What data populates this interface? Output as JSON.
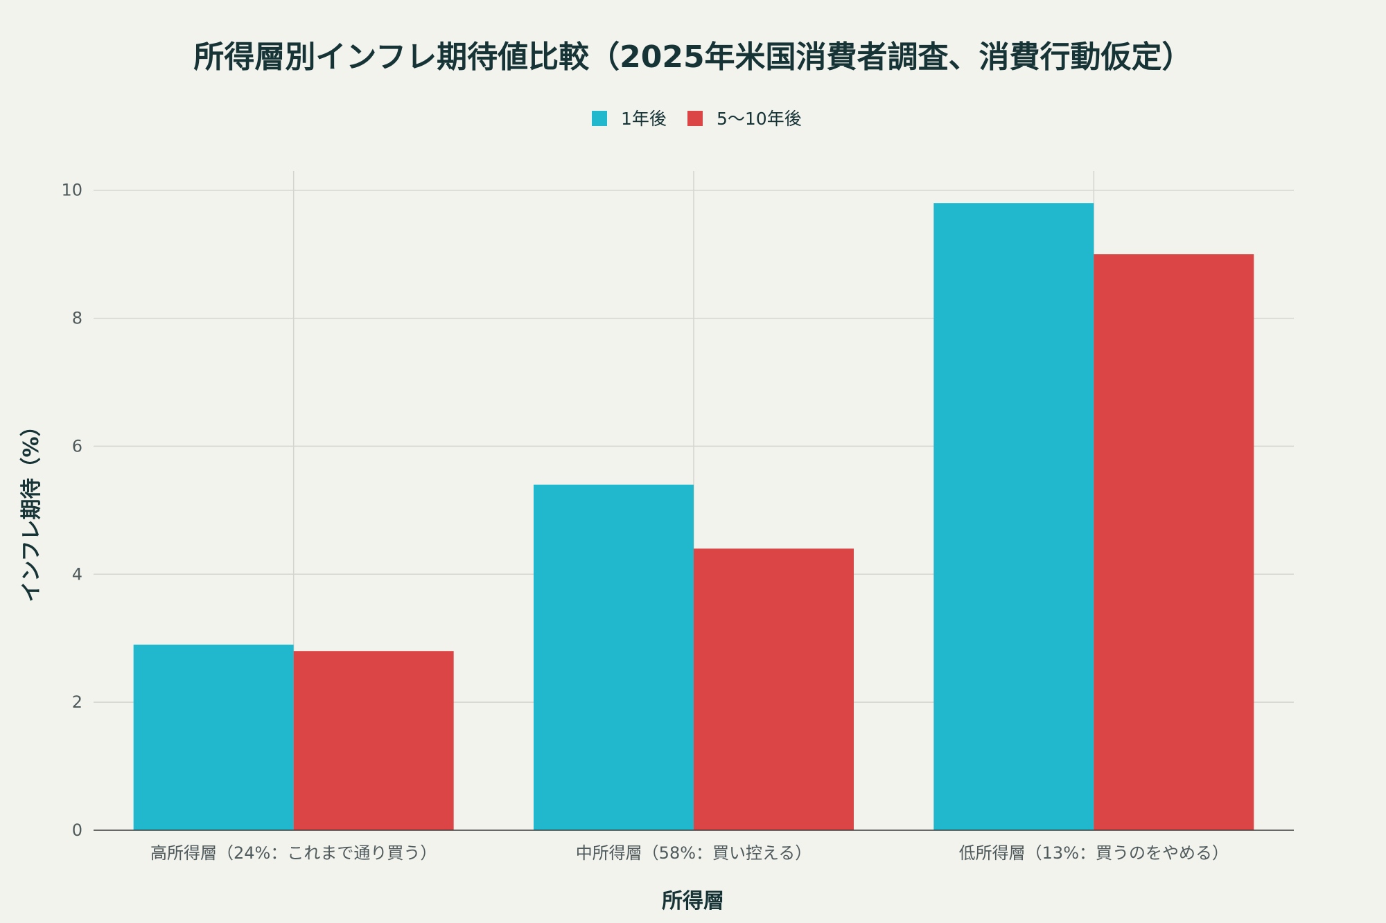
{
  "chart_data": {
    "type": "bar",
    "title": "所得層別インフレ期待値比較（2025年米国消費者調査、消費行動仮定）",
    "xlabel": "所得層",
    "ylabel": "インフレ期待（%）",
    "categories": [
      "高所得層（24%：これまで通り買う）",
      "中所得層（58%：買い控える）",
      "低所得層（13%：買うのをやめる）"
    ],
    "series": [
      {
        "name": "1年後",
        "color": "#21b7cc",
        "values": [
          2.9,
          5.4,
          9.8
        ]
      },
      {
        "name": "5〜10年後",
        "color": "#db4545",
        "values": [
          2.8,
          4.4,
          9.0
        ]
      }
    ],
    "ylim": [
      0,
      10.3
    ],
    "yticks": [
      0,
      2,
      4,
      6,
      8,
      10
    ],
    "grid": true,
    "legend_position": "top-center"
  }
}
